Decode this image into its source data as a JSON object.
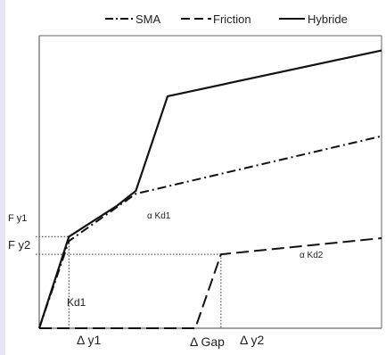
{
  "chart_data": {
    "type": "line",
    "title": "",
    "xlabel": "",
    "ylabel": "",
    "grid": false,
    "legend_position": "top",
    "legend": [
      {
        "name": "SMA",
        "style": "dash-dot"
      },
      {
        "name": "Friction",
        "style": "dashed"
      },
      {
        "name": "Hybride",
        "style": "solid"
      }
    ],
    "series": [
      {
        "name": "SMA",
        "style": "dash-dot",
        "points": [
          [
            0,
            0
          ],
          [
            0.59,
            0.59
          ],
          [
            1.92,
            0.91
          ],
          [
            6.8,
            1.3
          ]
        ]
      },
      {
        "name": "Friction",
        "style": "dashed",
        "points": [
          [
            0,
            0
          ],
          [
            3.1,
            0
          ],
          [
            3.61,
            0.5
          ],
          [
            6.8,
            0.61
          ]
        ]
      },
      {
        "name": "Hybride",
        "style": "solid",
        "points": [
          [
            0,
            0
          ],
          [
            0.59,
            0.62
          ],
          [
            1.55,
            0.83
          ],
          [
            1.92,
            0.93
          ],
          [
            2.55,
            1.57
          ],
          [
            6.8,
            1.88
          ]
        ]
      }
    ],
    "reference_lines": [
      {
        "label_key": "fy1",
        "y": 0.62
      },
      {
        "label_key": "fy2",
        "y": 0.5
      },
      {
        "label_key": "dy1",
        "x": 0.59
      },
      {
        "label_key": "dy2",
        "x": 3.61
      }
    ],
    "labels": {
      "fy1": "F y1",
      "fy2": "F y2",
      "dy1": "Δ y1",
      "gap": "Δ Gap",
      "dy2": "Δ y2",
      "kd1": "Kd1",
      "akd1": "α Kd1",
      "akd2": "α Kd2"
    }
  }
}
